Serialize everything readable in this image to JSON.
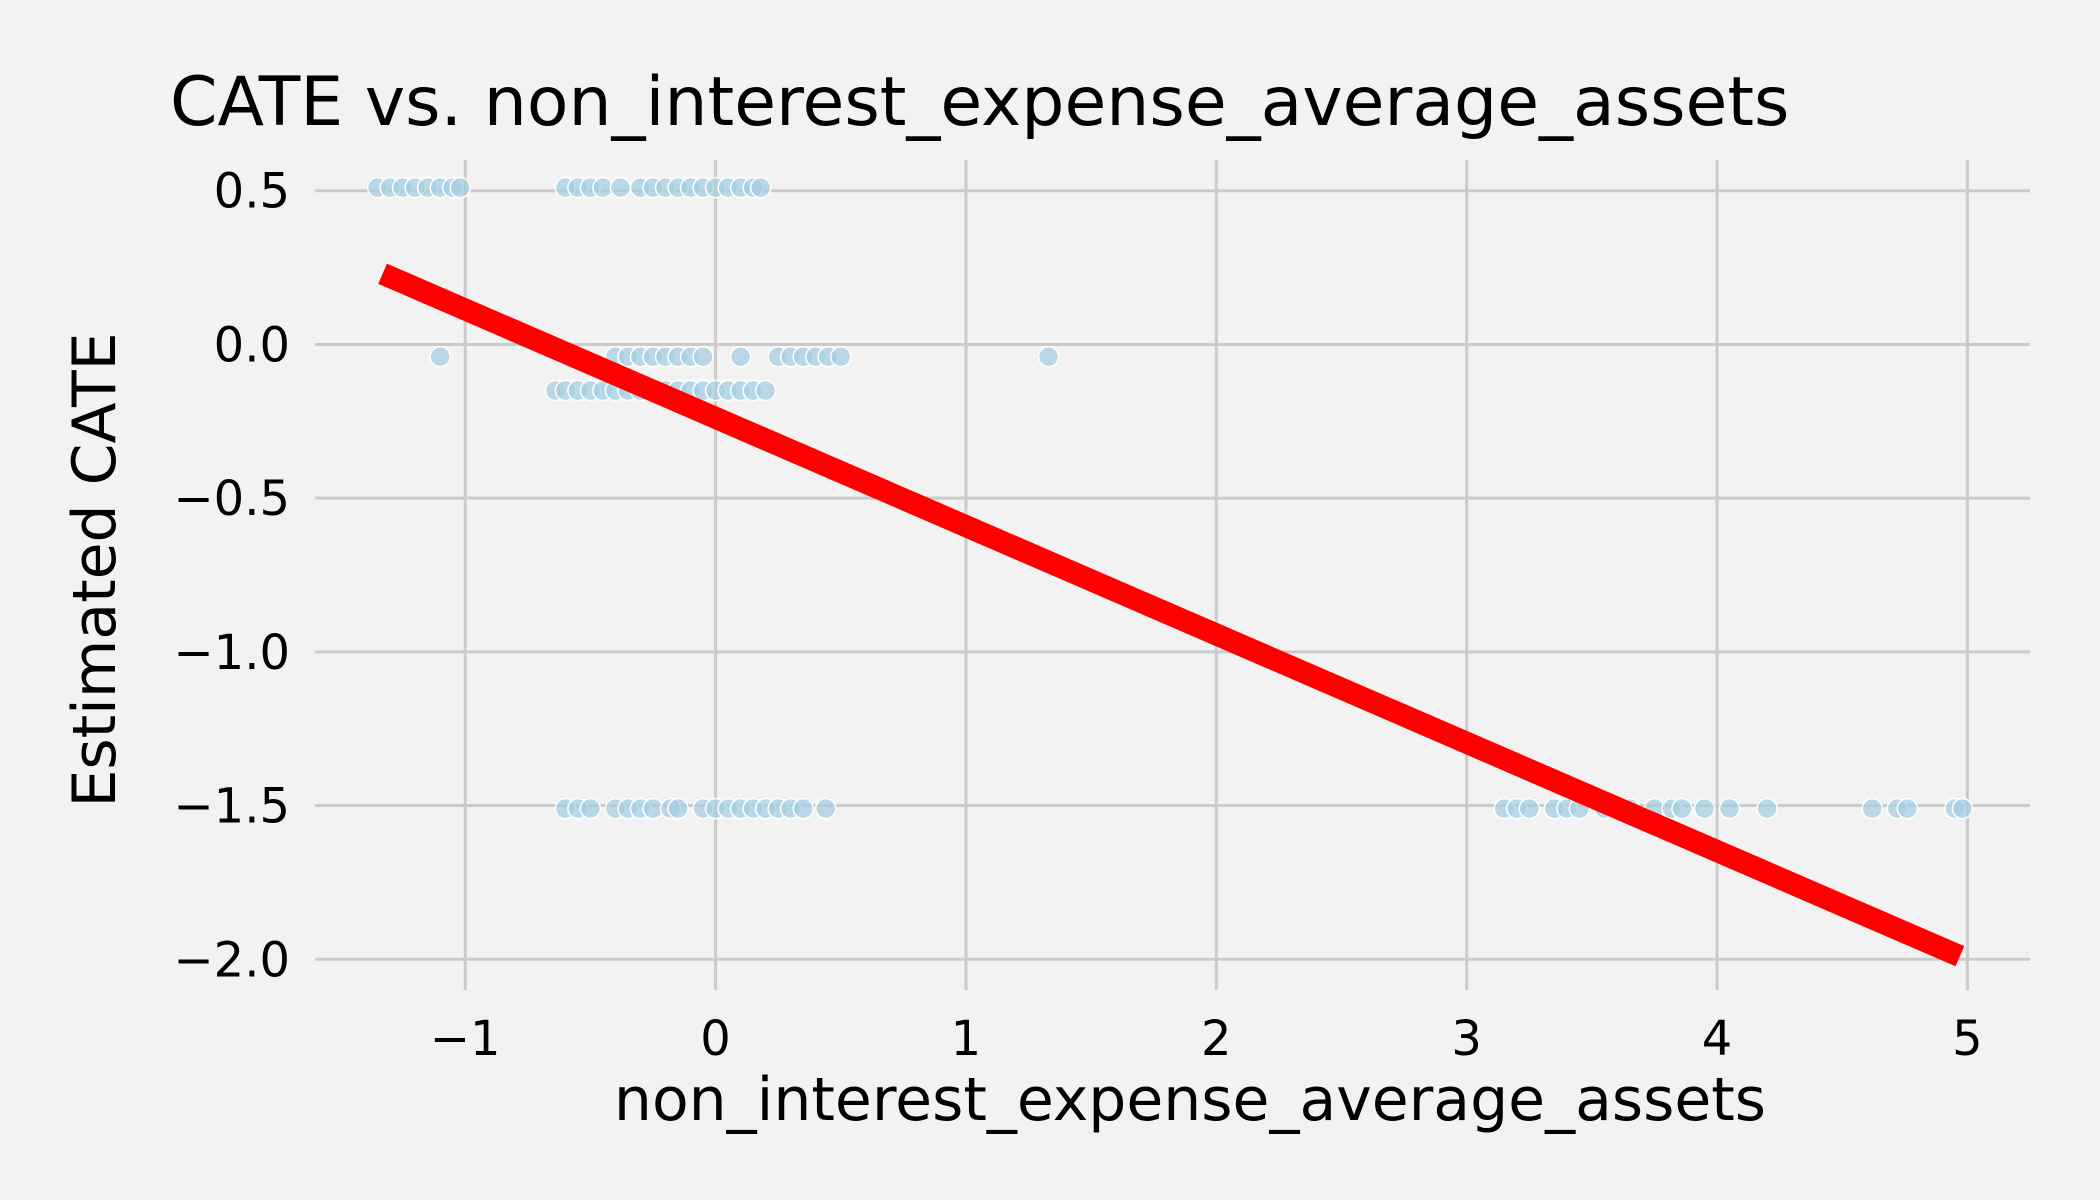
{
  "chart_data": {
    "type": "scatter",
    "title": "CATE vs. non_interest_expense_average_assets",
    "xlabel": "non_interest_expense_average_assets",
    "ylabel": "Estimated CATE",
    "xlim": [
      -1.6,
      5.25
    ],
    "ylim": [
      -2.1,
      0.6
    ],
    "x_ticks": [
      -1,
      0,
      1,
      2,
      3,
      4,
      5
    ],
    "x_tick_labels": [
      "−1",
      "0",
      "1",
      "2",
      "3",
      "4",
      "5"
    ],
    "y_ticks": [
      0.5,
      0.0,
      -0.5,
      -1.0,
      -1.5,
      -2.0
    ],
    "y_tick_labels": [
      "0.5",
      "0.0",
      "−0.5",
      "−1.0",
      "−1.5",
      "−2.0"
    ],
    "grid": true,
    "colors": {
      "background": "#f2f2f2",
      "points": "#a6cee3",
      "fit_line": "#ff0000",
      "grid": "#cbcbcb"
    },
    "series": [
      {
        "kind": "scatter",
        "x": [
          -1.35,
          -1.3,
          -1.25,
          -1.2,
          -1.15,
          -1.1,
          -1.05,
          -1.02,
          -0.6,
          -0.55,
          -0.5,
          -0.45,
          -0.38,
          -0.3,
          -0.25,
          -0.2,
          -0.15,
          -0.1,
          -0.05,
          0.0,
          0.05,
          0.1,
          0.15,
          0.18,
          -1.1,
          -0.4,
          -0.35,
          -0.3,
          -0.25,
          -0.2,
          -0.15,
          -0.1,
          -0.05,
          0.1,
          0.25,
          0.3,
          0.35,
          0.4,
          0.45,
          0.5,
          1.33,
          -0.64,
          -0.6,
          -0.55,
          -0.5,
          -0.45,
          -0.4,
          -0.35,
          -0.3,
          -0.25,
          -0.2,
          -0.15,
          -0.1,
          -0.05,
          0.0,
          0.05,
          0.1,
          0.15,
          0.2,
          -0.6,
          -0.55,
          -0.5,
          -0.4,
          -0.35,
          -0.3,
          -0.25,
          -0.18,
          -0.15,
          -0.05,
          0.0,
          0.05,
          0.1,
          0.15,
          0.2,
          0.25,
          0.3,
          0.35,
          0.44,
          3.15,
          3.2,
          3.25,
          3.35,
          3.4,
          3.45,
          3.55,
          3.65,
          3.75,
          3.82,
          3.86,
          3.95,
          4.05,
          4.2,
          4.62,
          4.72,
          4.76,
          4.95,
          4.98
        ],
        "y": [
          0.51,
          0.51,
          0.51,
          0.51,
          0.51,
          0.51,
          0.51,
          0.51,
          0.51,
          0.51,
          0.51,
          0.51,
          0.51,
          0.51,
          0.51,
          0.51,
          0.51,
          0.51,
          0.51,
          0.51,
          0.51,
          0.51,
          0.51,
          0.51,
          -0.04,
          -0.04,
          -0.04,
          -0.04,
          -0.04,
          -0.04,
          -0.04,
          -0.04,
          -0.04,
          -0.04,
          -0.04,
          -0.04,
          -0.04,
          -0.04,
          -0.04,
          -0.04,
          -0.04,
          -0.15,
          -0.15,
          -0.15,
          -0.15,
          -0.15,
          -0.15,
          -0.15,
          -0.15,
          -0.15,
          -0.15,
          -0.15,
          -0.15,
          -0.15,
          -0.15,
          -0.15,
          -0.15,
          -0.15,
          -0.15,
          -1.51,
          -1.51,
          -1.51,
          -1.51,
          -1.51,
          -1.51,
          -1.51,
          -1.51,
          -1.51,
          -1.51,
          -1.51,
          -1.51,
          -1.51,
          -1.51,
          -1.51,
          -1.51,
          -1.51,
          -1.51,
          -1.51,
          -1.51,
          -1.51,
          -1.51,
          -1.51,
          -1.51,
          -1.51,
          -1.51,
          -1.51,
          -1.51,
          -1.51,
          -1.51,
          -1.51,
          -1.51,
          -1.51,
          -1.51,
          -1.51,
          -1.51,
          -1.51,
          -1.51
        ]
      },
      {
        "kind": "line",
        "x": [
          -1.33,
          4.97
        ],
        "y": [
          0.23,
          -1.99
        ]
      }
    ]
  }
}
